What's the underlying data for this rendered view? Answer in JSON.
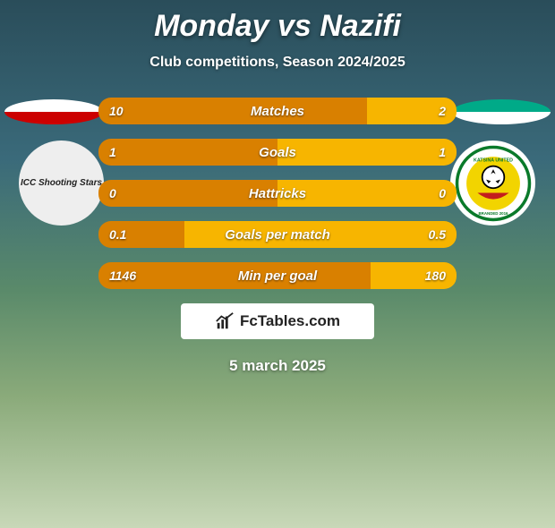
{
  "title": "Monday vs Nazifi",
  "subtitle": "Club competitions, Season 2024/2025",
  "date": "5 march 2025",
  "brand": "FcTables.com",
  "colors": {
    "left_bar": "#d98000",
    "right_bar": "#f7b500",
    "bg_gradient": [
      "#2a4d5a",
      "#3a6a7a",
      "#5a8a6a",
      "#8aaa7a",
      "#c8d8b8"
    ]
  },
  "logos": {
    "left_text": "ICC Shooting Stars",
    "right_alt": "Katsina United Football Club"
  },
  "stats": [
    {
      "label": "Matches",
      "left_val": "10",
      "right_val": "2",
      "left_pct": 75,
      "right_pct": 25
    },
    {
      "label": "Goals",
      "left_val": "1",
      "right_val": "1",
      "left_pct": 50,
      "right_pct": 50
    },
    {
      "label": "Hattricks",
      "left_val": "0",
      "right_val": "0",
      "left_pct": 50,
      "right_pct": 50
    },
    {
      "label": "Goals per match",
      "left_val": "0.1",
      "right_val": "0.5",
      "left_pct": 24,
      "right_pct": 76
    },
    {
      "label": "Min per goal",
      "left_val": "1146",
      "right_val": "180",
      "left_pct": 76,
      "right_pct": 24
    }
  ]
}
